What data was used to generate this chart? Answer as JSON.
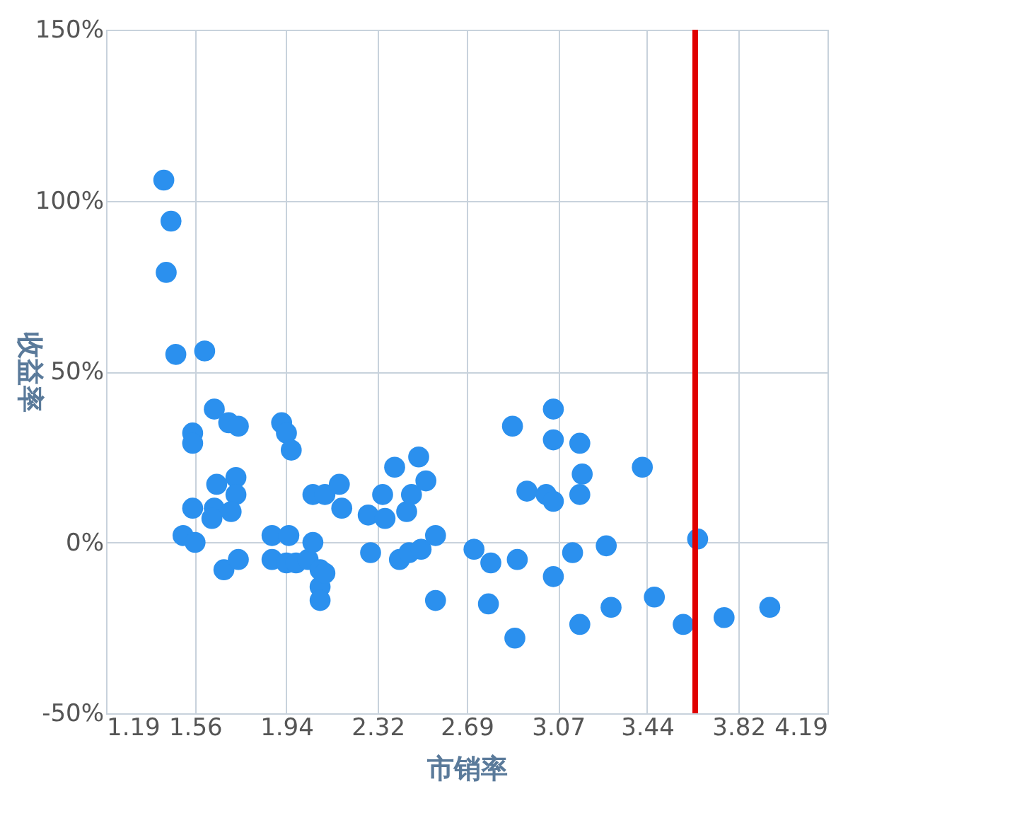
{
  "chart_data": {
    "type": "scatter",
    "xlabel": "市销率",
    "ylabel": "收益率",
    "marker": "circle",
    "grid": true,
    "xlim": [
      1.19,
      4.19
    ],
    "xticks": [
      1.19,
      1.56,
      1.94,
      2.32,
      2.69,
      3.07,
      3.44,
      3.82,
      4.19
    ],
    "ylim": [
      -50,
      150
    ],
    "yticks": [
      {
        "value": -50,
        "label": "-50%"
      },
      {
        "value": 0,
        "label": "0%"
      },
      {
        "value": 50,
        "label": "50%"
      },
      {
        "value": 100,
        "label": "100%"
      },
      {
        "value": 150,
        "label": "150%"
      }
    ],
    "ref_lines": [
      {
        "axis": "x",
        "value": 3.64,
        "color": "#e00000"
      }
    ],
    "series": [
      {
        "color": "#2b90ee",
        "x": [
          1.43,
          1.46,
          1.44,
          1.48,
          1.6,
          1.64,
          1.55,
          1.55,
          1.7,
          1.74,
          1.92,
          1.94,
          1.96,
          1.65,
          1.73,
          1.73,
          1.55,
          1.64,
          1.63,
          1.71,
          1.51,
          1.56,
          1.68,
          1.74,
          1.88,
          1.95,
          1.88,
          1.94,
          1.98,
          2.03,
          2.05,
          2.05,
          2.1,
          2.16,
          2.17,
          2.08,
          2.08,
          2.08,
          2.1,
          2.28,
          2.29,
          2.34,
          2.35,
          2.39,
          2.41,
          2.44,
          2.46,
          2.49,
          2.52,
          2.45,
          2.5,
          2.56,
          2.56,
          2.72,
          2.79,
          2.88,
          2.9,
          2.94,
          2.78,
          2.89,
          3.05,
          3.05,
          3.16,
          3.17,
          3.16,
          3.02,
          3.05,
          3.05,
          3.13,
          3.16,
          3.27,
          3.29,
          3.42,
          3.47,
          3.65,
          3.59,
          3.76,
          3.95
        ],
        "values": [
          106,
          94,
          79,
          55,
          56,
          39,
          32,
          29,
          35,
          34,
          35,
          32,
          27,
          17,
          19,
          14,
          10,
          10,
          7,
          9,
          2,
          0,
          -8,
          -5,
          2,
          2,
          -5,
          -6,
          -6,
          -5,
          0,
          14,
          14,
          17,
          10,
          -8,
          -13,
          -17,
          -9,
          8,
          -3,
          14,
          7,
          22,
          -5,
          9,
          14,
          25,
          18,
          -3,
          -2,
          2,
          -17,
          -2,
          -6,
          34,
          -5,
          15,
          -18,
          -28,
          39,
          30,
          29,
          20,
          14,
          14,
          12,
          -10,
          -3,
          -24,
          -1,
          -19,
          22,
          -16,
          1,
          -24,
          -22,
          -19
        ]
      }
    ]
  }
}
